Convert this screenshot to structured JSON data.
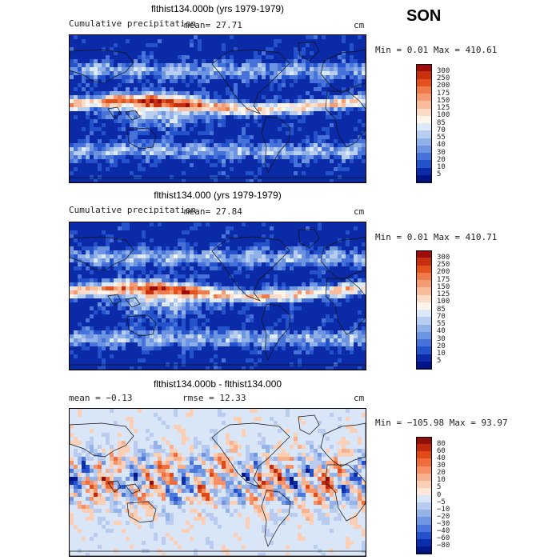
{
  "season": "SON",
  "panels": [
    {
      "title": "flthist134.000b (yrs 1979-1979)",
      "subtitle_left": "Cumulative precipitation",
      "subtitle_mid": "mean=  27.71",
      "units": "cm",
      "minmax": "Min =   0.01 Max = 410.61",
      "colorbar_levels": [
        "300",
        "250",
        "200",
        "175",
        "150",
        "125",
        "100",
        "85",
        "70",
        "55",
        "40",
        "30",
        "20",
        "10",
        "5"
      ],
      "colors": [
        "#9b0d0a",
        "#c6300f",
        "#e3511e",
        "#ef7a4a",
        "#f59b73",
        "#f9bd9d",
        "#fbdcc7",
        "#fdf4ea",
        "#dce9f8",
        "#b7cef1",
        "#8fb1e8",
        "#6c94e1",
        "#4772d9",
        "#2452cb",
        "#0a2aa8",
        "#001487"
      ],
      "field": "precip"
    },
    {
      "title": "flthist134.000 (yrs 1979-1979)",
      "subtitle_left": "Cumulative precipitation",
      "subtitle_mid": "mean=  27.84",
      "units": "cm",
      "minmax": "Min =   0.01 Max = 410.71",
      "colorbar_levels": [
        "300",
        "250",
        "200",
        "175",
        "150",
        "125",
        "100",
        "85",
        "70",
        "55",
        "40",
        "30",
        "20",
        "10",
        "5"
      ],
      "colors": [
        "#9b0d0a",
        "#c6300f",
        "#e3511e",
        "#ef7a4a",
        "#f59b73",
        "#f9bd9d",
        "#fbdcc7",
        "#fdf4ea",
        "#dce9f8",
        "#b7cef1",
        "#8fb1e8",
        "#6c94e1",
        "#4772d9",
        "#2452cb",
        "#0a2aa8",
        "#001487"
      ],
      "field": "precip"
    },
    {
      "title": "flthist134.000b - flthist134.000",
      "subtitle_left": "mean =  −0.13",
      "subtitle_mid": "rmse =  12.33",
      "units": "cm",
      "minmax": "Min = −105.98 Max =  93.97",
      "colorbar_levels": [
        "80",
        "60",
        "40",
        "30",
        "20",
        "10",
        "5",
        "0",
        "−5",
        "−10",
        "−20",
        "−30",
        "−40",
        "−60",
        "−80"
      ],
      "colors": [
        "#8f0f0b",
        "#bf2a0e",
        "#e04816",
        "#ef6d3d",
        "#f59067",
        "#f8b18e",
        "#fbcfb6",
        "#fde7d8",
        "#d9e6f7",
        "#b9ccf0",
        "#95b2e9",
        "#7096e2",
        "#4a76db",
        "#2552cc",
        "#0a2eaa",
        "#001889"
      ],
      "field": "diff"
    }
  ],
  "chart_data": [
    {
      "type": "heatmap",
      "title": "flthist134.000b (yrs 1979-1979)",
      "variable": "Cumulative precipitation",
      "units": "cm",
      "mean": 27.71,
      "min": 0.01,
      "max": 410.61,
      "contour_levels": [
        5,
        10,
        20,
        30,
        40,
        55,
        70,
        85,
        100,
        125,
        150,
        175,
        200,
        250,
        300
      ]
    },
    {
      "type": "heatmap",
      "title": "flthist134.000 (yrs 1979-1979)",
      "variable": "Cumulative precipitation",
      "units": "cm",
      "mean": 27.84,
      "min": 0.01,
      "max": 410.71,
      "contour_levels": [
        5,
        10,
        20,
        30,
        40,
        55,
        70,
        85,
        100,
        125,
        150,
        175,
        200,
        250,
        300
      ]
    },
    {
      "type": "heatmap",
      "title": "flthist134.000b - flthist134.000",
      "units": "cm",
      "mean": -0.13,
      "rmse": 12.33,
      "min": -105.98,
      "max": 93.97,
      "contour_levels": [
        -80,
        -60,
        -40,
        -30,
        -20,
        -10,
        -5,
        0,
        5,
        10,
        20,
        30,
        40,
        60,
        80
      ]
    }
  ]
}
